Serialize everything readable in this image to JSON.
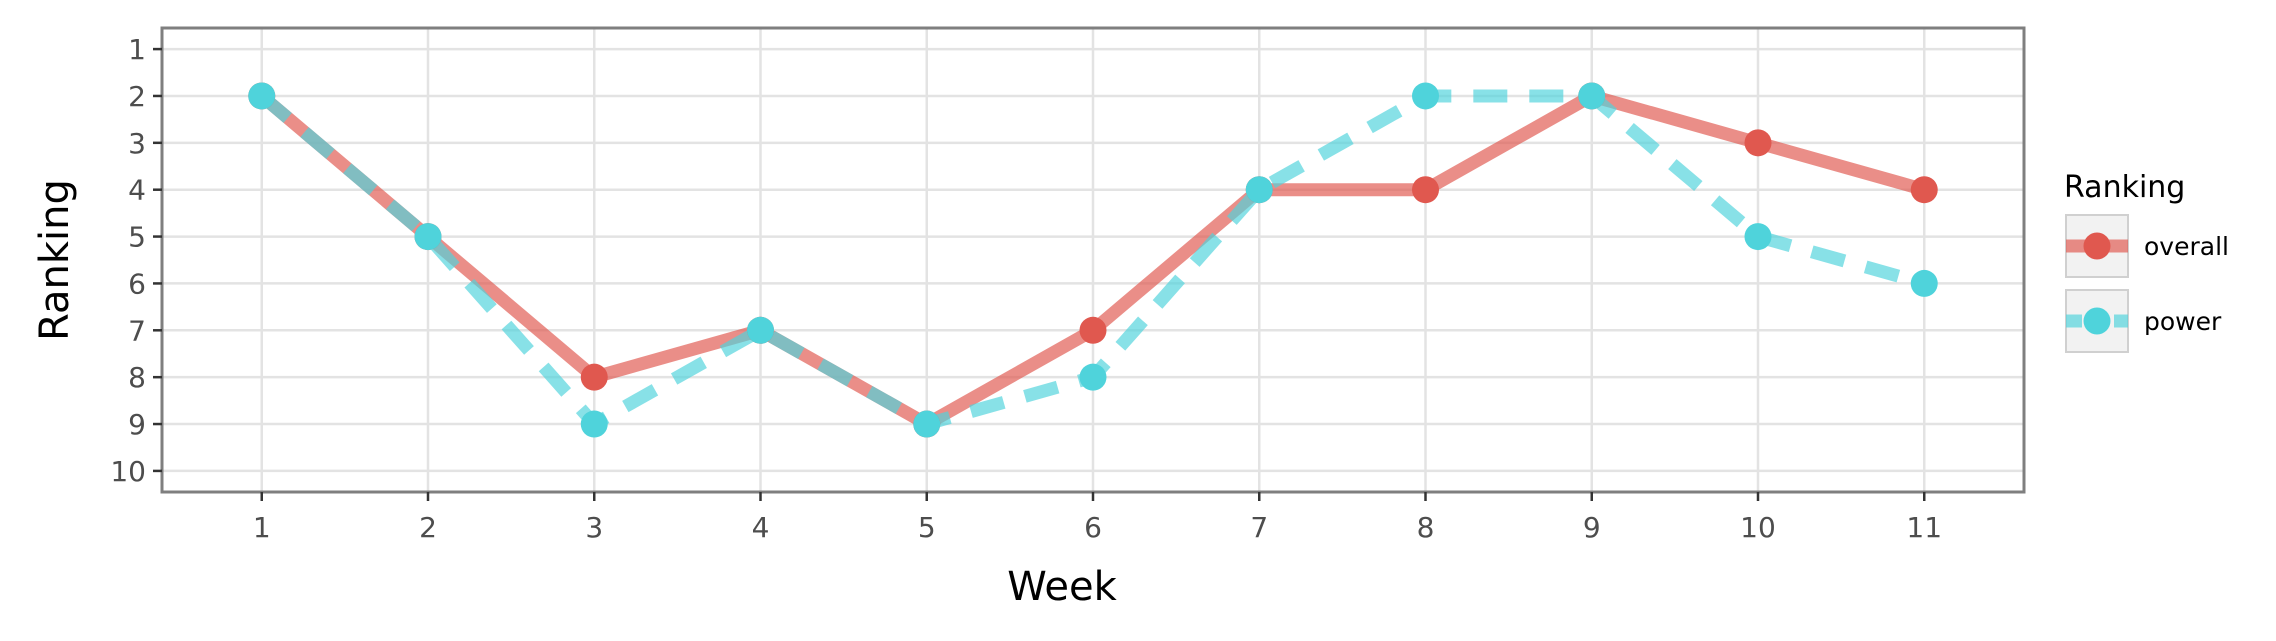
{
  "chart_data": {
    "type": "line",
    "xlabel": "Week",
    "ylabel": "Ranking",
    "x": [
      1,
      2,
      3,
      4,
      5,
      6,
      7,
      8,
      9,
      10,
      11
    ],
    "xlim": [
      0.4,
      11.6
    ],
    "ylim": [
      10.45,
      0.55
    ],
    "y_reversed": true,
    "y_ticks": [
      1,
      2,
      3,
      4,
      5,
      6,
      7,
      8,
      9,
      10
    ],
    "grid": true,
    "legend": {
      "title": "Ranking",
      "position": "right"
    },
    "series": [
      {
        "name": "overall",
        "color": "#e0584f",
        "line_style": "solid",
        "values": [
          2,
          5,
          8,
          7,
          9,
          7,
          4,
          4,
          2,
          3,
          4
        ]
      },
      {
        "name": "power",
        "color": "#4fd3db",
        "line_style": "dashed",
        "values": [
          2,
          5,
          9,
          7,
          9,
          8,
          4,
          2,
          2,
          5,
          6
        ]
      }
    ]
  }
}
